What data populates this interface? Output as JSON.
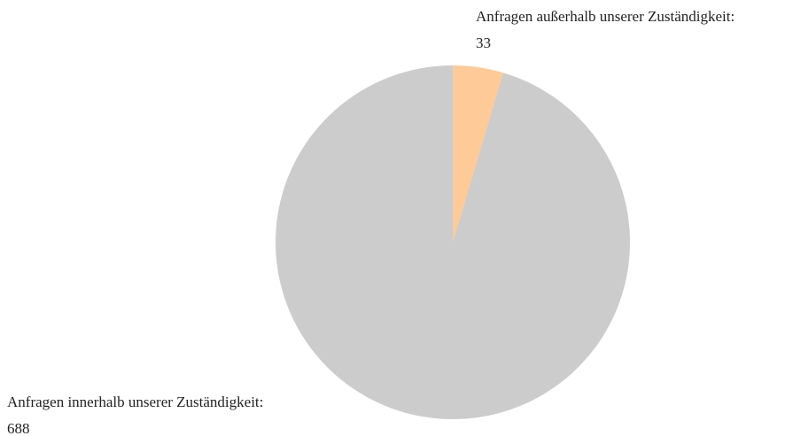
{
  "chart_data": {
    "type": "pie",
    "categories": [
      "Anfragen außerhalb unserer Zuständigkeit:",
      "Anfragen innerhalb unserer Zuständigkeit:"
    ],
    "values": [
      33,
      688
    ],
    "colors": [
      "#fdca98",
      "#cccccc"
    ]
  }
}
